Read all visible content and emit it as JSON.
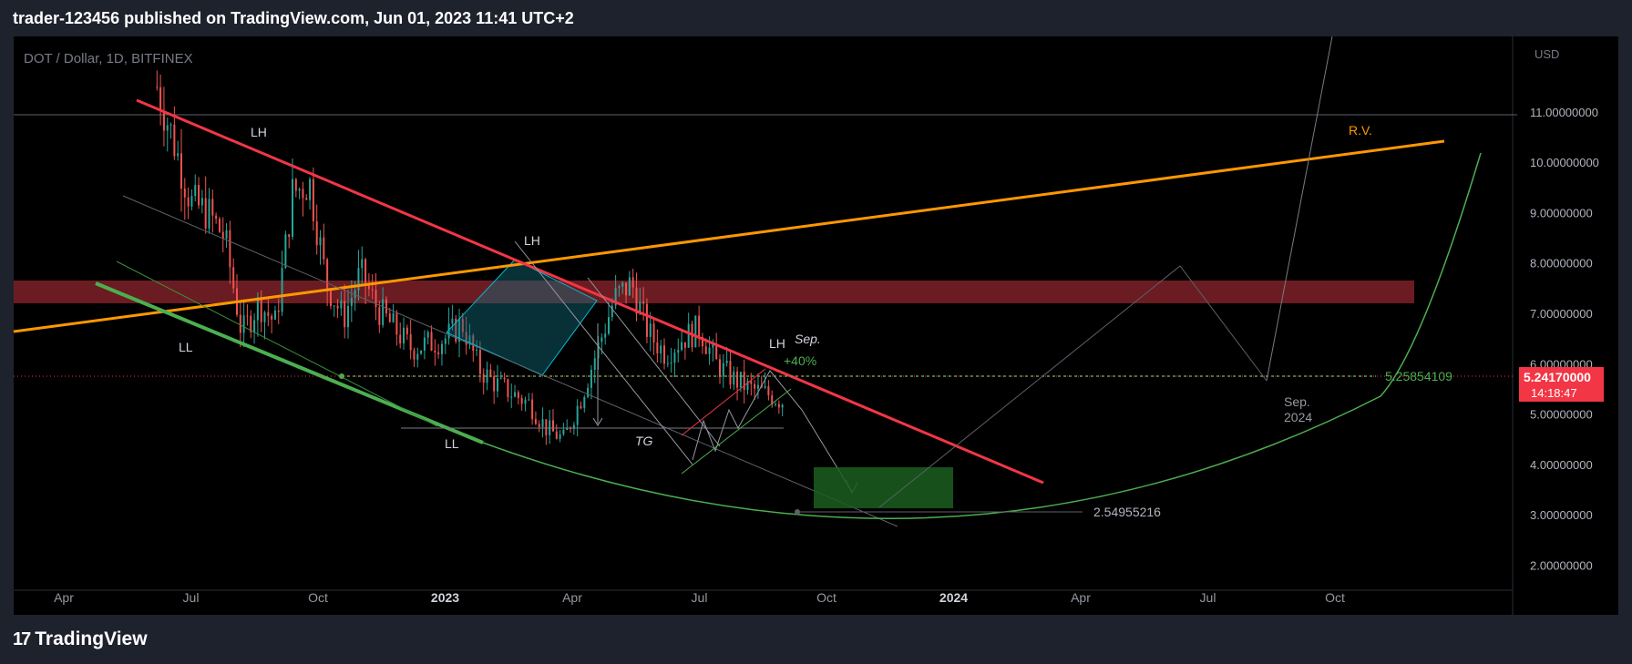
{
  "header": {
    "publish_line": "trader-123456 published on TradingView.com, Jun 01, 2023 11:41 UTC+2"
  },
  "footer": {
    "logo_icon": "tradingview-logo-icon",
    "brand": "TradingView"
  },
  "chart_data": {
    "type": "candlestick",
    "symbol_label": "DOT / Dollar, 1D, BITFINEX",
    "currency_label": "USD",
    "ylim": [
      1.5,
      12.5
    ],
    "y_ticks": [
      "2.00000000",
      "3.00000000",
      "4.00000000",
      "5.00000000",
      "6.00000000",
      "7.00000000",
      "8.00000000",
      "9.00000000",
      "10.00000000",
      "11.00000000"
    ],
    "x_ticks": [
      "Apr",
      "Jul",
      "Oct",
      "2023",
      "Apr",
      "Jul",
      "Oct",
      "2024",
      "Apr",
      "Jul",
      "Oct"
    ],
    "x_tick_bold": [
      false,
      false,
      false,
      true,
      false,
      false,
      false,
      true,
      false,
      false,
      false
    ],
    "price_series": {
      "months": [
        2.2,
        2.6,
        3.0,
        3.4,
        3.8,
        4.2,
        4.6,
        5.0,
        5.4,
        5.8,
        6.2,
        6.6,
        7.0,
        7.4,
        7.8,
        8.2,
        8.6,
        9.0,
        9.4,
        9.8,
        10.2,
        10.6,
        11.0,
        11.4,
        11.8,
        12.2,
        12.6,
        13.0,
        13.4,
        13.8,
        14.2,
        14.6,
        15.0,
        15.4,
        15.8,
        16.2,
        16.6,
        17.0
      ],
      "close": [
        11.5,
        10.4,
        9.2,
        9.0,
        8.5,
        6.6,
        7.2,
        6.8,
        9.4,
        9.6,
        7.6,
        6.9,
        7.8,
        7.1,
        6.7,
        6.3,
        6.4,
        6.5,
        6.8,
        5.9,
        5.6,
        5.4,
        5.2,
        4.7,
        4.5,
        5.3,
        6.3,
        7.3,
        7.6,
        6.6,
        6.2,
        6.5,
        6.7,
        6.0,
        5.7,
        5.5,
        5.4,
        5.24
      ]
    },
    "current_price": "5.24170000",
    "countdown": "14:18:47",
    "level_label": "5.25854109",
    "target_low_label": "2.54955216",
    "annotations": {
      "lh1": "LH",
      "lh2": "LH",
      "lh3": "LH",
      "ll1": "LL",
      "ll2": "LL",
      "tg": "TG",
      "sep": "Sep.",
      "pct": "+40%",
      "rv": "R.V.",
      "sep2024_line1": "Sep.",
      "sep2024_line2": "2024"
    },
    "colors": {
      "background": "#000000",
      "frame": "#1e222d",
      "up": "#26a69a",
      "down": "#ef5350",
      "resistance_line": "#f23645",
      "trend_line": "#ff9800",
      "support_line": "#4caf50",
      "zone": "#6b1c22",
      "target_box": "#1b5e20",
      "price_badge": "#f23645"
    }
  }
}
